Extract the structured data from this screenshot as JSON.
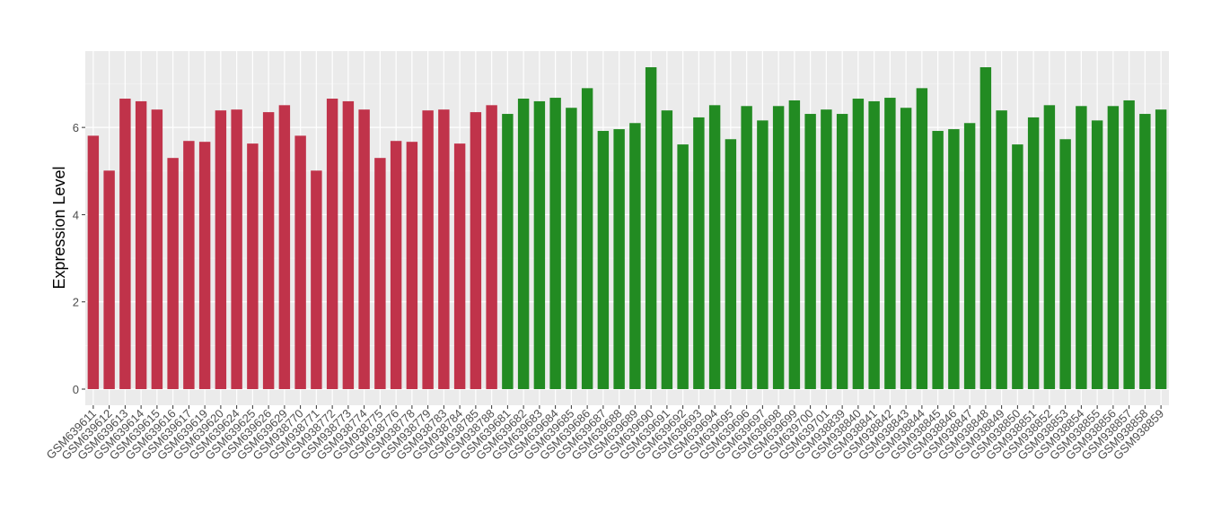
{
  "chart_data": {
    "type": "bar",
    "y_label": "Expression Level",
    "categories": [
      "GSM639611",
      "GSM639612",
      "GSM639613",
      "GSM639614",
      "GSM639615",
      "GSM639616",
      "GSM639617",
      "GSM639619",
      "GSM639620",
      "GSM639624",
      "GSM639625",
      "GSM639626",
      "GSM639629",
      "GSM938770",
      "GSM938771",
      "GSM938772",
      "GSM938773",
      "GSM938774",
      "GSM938775",
      "GSM938776",
      "GSM938778",
      "GSM938779",
      "GSM938783",
      "GSM938784",
      "GSM938785",
      "GSM938788",
      "GSM639681",
      "GSM639682",
      "GSM639683",
      "GSM639684",
      "GSM639685",
      "GSM639686",
      "GSM639687",
      "GSM639688",
      "GSM639689",
      "GSM639690",
      "GSM639691",
      "GSM639692",
      "GSM639693",
      "GSM639694",
      "GSM639695",
      "GSM639696",
      "GSM639697",
      "GSM639698",
      "GSM639699",
      "GSM639700",
      "GSM639701",
      "GSM938839",
      "GSM938840",
      "GSM938841",
      "GSM938842",
      "GSM938843",
      "GSM938844",
      "GSM938845",
      "GSM938846",
      "GSM938847",
      "GSM938848",
      "GSM938849",
      "GSM938850",
      "GSM938851",
      "GSM938852",
      "GSM938853",
      "GSM938854",
      "GSM938855",
      "GSM938856",
      "GSM938857",
      "GSM938858",
      "GSM938859"
    ],
    "values": [
      5.81,
      5.01,
      6.66,
      6.6,
      6.41,
      5.3,
      5.69,
      5.67,
      6.39,
      6.41,
      5.63,
      6.35,
      6.51,
      5.81,
      5.01,
      6.66,
      6.6,
      6.41,
      5.3,
      5.69,
      5.67,
      6.39,
      6.41,
      5.63,
      6.35,
      6.51,
      6.31,
      6.66,
      6.6,
      6.68,
      6.45,
      6.9,
      5.92,
      5.96,
      6.1,
      7.38,
      6.39,
      5.61,
      6.23,
      6.51,
      5.73,
      6.49,
      6.16,
      6.49,
      6.62,
      6.31,
      6.41,
      6.31,
      6.66,
      6.6,
      6.68,
      6.45,
      6.9,
      5.92,
      5.96,
      6.1,
      7.38,
      6.39,
      5.61,
      6.23,
      6.51,
      5.73,
      6.49,
      6.16,
      6.49,
      6.62,
      6.31,
      6.41
    ],
    "colors": [
      "#c0334a",
      "#c0334a",
      "#c0334a",
      "#c0334a",
      "#c0334a",
      "#c0334a",
      "#c0334a",
      "#c0334a",
      "#c0334a",
      "#c0334a",
      "#c0334a",
      "#c0334a",
      "#c0334a",
      "#c0334a",
      "#c0334a",
      "#c0334a",
      "#c0334a",
      "#c0334a",
      "#c0334a",
      "#c0334a",
      "#c0334a",
      "#c0334a",
      "#c0334a",
      "#c0334a",
      "#c0334a",
      "#c0334a",
      "#228b22",
      "#228b22",
      "#228b22",
      "#228b22",
      "#228b22",
      "#228b22",
      "#228b22",
      "#228b22",
      "#228b22",
      "#228b22",
      "#228b22",
      "#228b22",
      "#228b22",
      "#228b22",
      "#228b22",
      "#228b22",
      "#228b22",
      "#228b22",
      "#228b22",
      "#228b22",
      "#228b22",
      "#228b22",
      "#228b22",
      "#228b22",
      "#228b22",
      "#228b22",
      "#228b22",
      "#228b22",
      "#228b22",
      "#228b22",
      "#228b22",
      "#228b22",
      "#228b22",
      "#228b22",
      "#228b22",
      "#228b22",
      "#228b22",
      "#228b22",
      "#228b22",
      "#228b22",
      "#228b22",
      "#228b22"
    ],
    "ylim": [
      -0.37,
      7.75
    ],
    "yticks": [
      0,
      2,
      4,
      6
    ],
    "minor_yticks": [
      1,
      3,
      5,
      7
    ],
    "grid": true
  }
}
